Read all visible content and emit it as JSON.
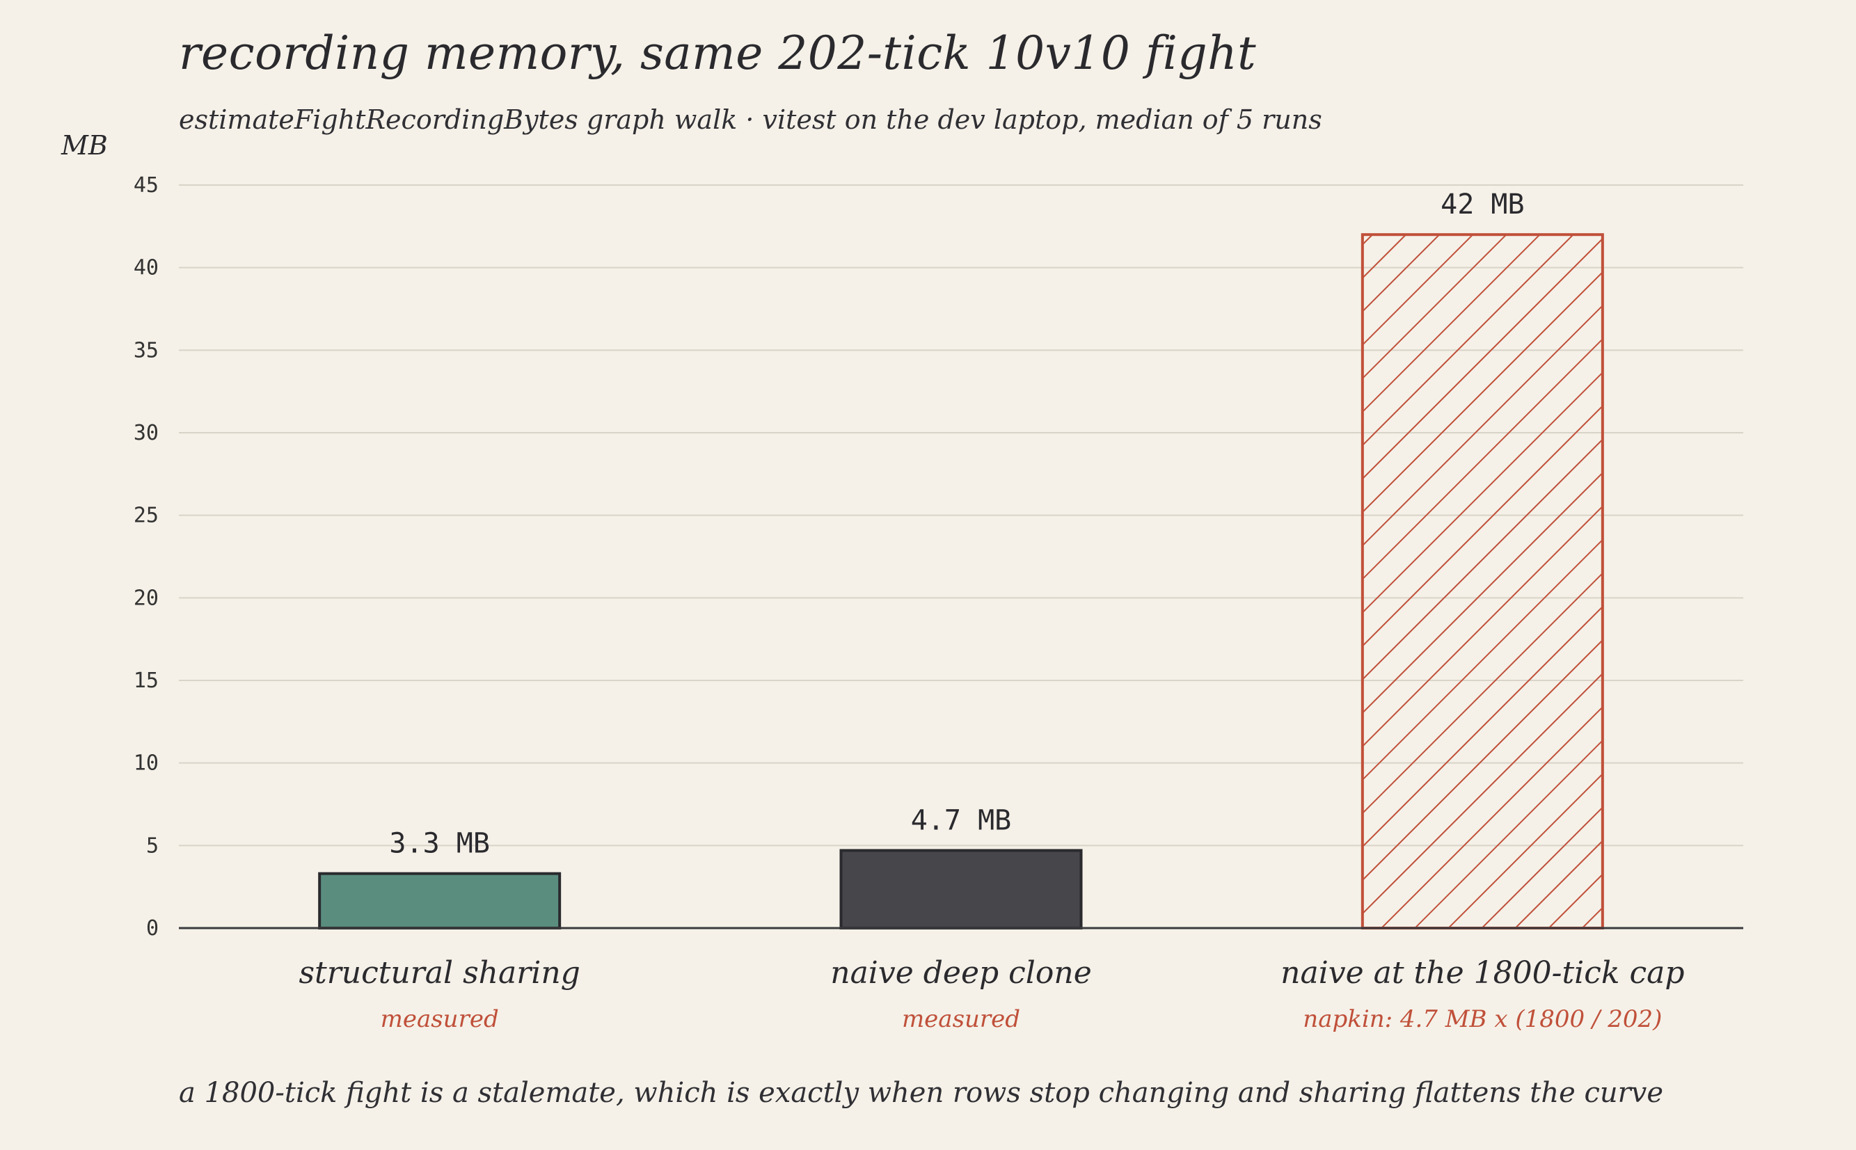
{
  "title": "recording memory, same 202-tick 10v10 fight",
  "subtitle": "estimateFightRecordingBytes graph walk · vitest on the dev laptop, median of 5 runs",
  "footnote": "a 1800-tick fight is a stalemate, which is exactly when rows stop changing and sharing flattens the curve",
  "chart_data": {
    "type": "bar",
    "ylabel": "MB",
    "ylim": [
      0,
      45
    ],
    "yticks": [
      0,
      5,
      10,
      15,
      20,
      25,
      30,
      35,
      40,
      45
    ],
    "grid": true,
    "categories": [
      "structural sharing",
      "naive deep clone",
      "naive at the 1800-tick cap"
    ],
    "values": [
      3.3,
      4.7,
      42
    ],
    "value_labels": [
      "3.3 MB",
      "4.7 MB",
      "42 MB"
    ],
    "notes": [
      "measured",
      "measured",
      "napkin: 4.7 MB x (1800 / 202)"
    ],
    "fills": [
      "solid",
      "solid",
      "hatched"
    ],
    "colors": [
      "#5a8d7e",
      "#47464b",
      "#c0503a"
    ]
  }
}
